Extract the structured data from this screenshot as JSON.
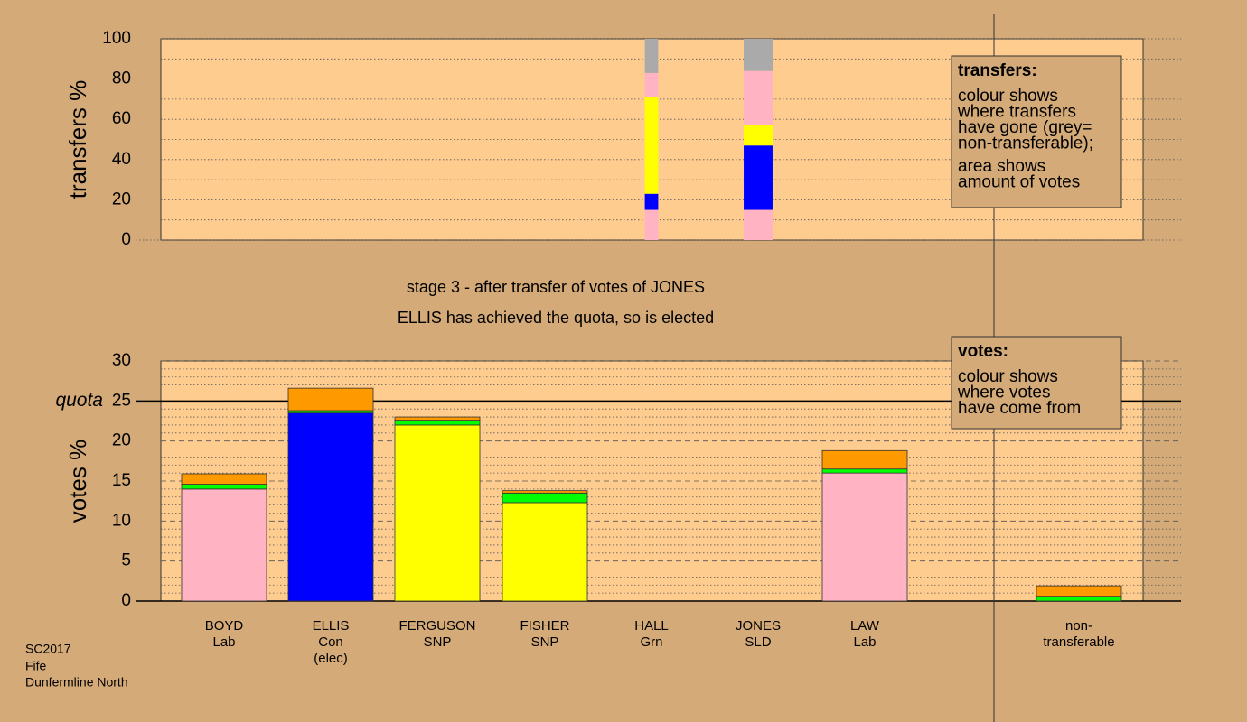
{
  "header": {
    "lines": [
      "stage 3 - after transfer of votes of JONES",
      "ELLIS has achieved the quota, so is elected"
    ]
  },
  "footer": [
    "SC2017",
    "Fife",
    "Dunfermline North"
  ],
  "chart_data": [
    {
      "type": "transfer_bar",
      "ylabel": "transfers %",
      "ylim": [
        0,
        100
      ],
      "yticks": [
        0,
        20,
        40,
        60,
        80,
        100
      ],
      "minor_yticks": [
        10,
        30,
        50,
        70,
        90
      ],
      "bar_amounts": [
        3.9,
        8.4
      ],
      "series": [
        {
          "color": "#ffb3c3",
          "values": [
            15,
            15
          ]
        },
        {
          "color": "#0000ff",
          "values": [
            8,
            32
          ]
        },
        {
          "color": "#ffff00",
          "values": [
            18,
            5
          ]
        },
        {
          "color": "#ffff00",
          "values": [
            30,
            5
          ]
        },
        {
          "color": "#ffb3c3",
          "values": [
            12,
            27
          ]
        },
        {
          "color": "#aaaaaa",
          "values": [
            17,
            16
          ]
        }
      ],
      "note": {
        "title": "transfers:",
        "lines": [
          "colour shows",
          "where transfers",
          "have gone (grey=",
          "non-transferable);",
          "area shows",
          "amount of votes"
        ]
      }
    },
    {
      "type": "stacked_bar",
      "ylabel": "votes %",
      "categories": [
        [
          "BOYD",
          "Lab"
        ],
        [
          "ELLIS",
          "Con",
          "(elec)"
        ],
        [
          "FERGUSON",
          "SNP"
        ],
        [
          "FISHER",
          "SNP"
        ],
        [
          "HALL",
          "Grn"
        ],
        [
          "JONES",
          "SLD"
        ],
        [
          "LAW",
          "Lab"
        ],
        [
          "non-",
          "transferable"
        ]
      ],
      "ylim": [
        0,
        30
      ],
      "yticks": [
        0,
        5,
        10,
        15,
        20,
        25,
        30
      ],
      "minor_yticks": [
        1,
        2,
        3,
        4,
        6,
        7,
        8,
        9,
        11,
        12,
        13,
        14,
        16,
        17,
        18,
        19,
        21,
        22,
        23,
        24,
        26,
        27,
        28,
        29
      ],
      "quota": 25,
      "quota_label": "quota",
      "series": [
        {
          "colors": [
            "#ffb3c3",
            "#0000ff",
            "#ffff00",
            "#ffff00",
            "#00ff00",
            "#ff9900",
            "#ffb3c3",
            "#aaaaaa"
          ],
          "values": [
            14.0,
            23.5,
            22.0,
            12.3,
            0,
            0,
            16.0,
            0
          ]
        },
        {
          "color": "#00ff00",
          "values": [
            0.6,
            0.3,
            0.6,
            1.2,
            0,
            0,
            0.5,
            0.6
          ]
        },
        {
          "color": "#ff9900",
          "values": [
            1.3,
            2.8,
            0.4,
            0.3,
            0,
            0,
            2.3,
            1.3
          ]
        }
      ],
      "note": {
        "title": "votes:",
        "lines": [
          "colour shows",
          "where votes",
          "have come from"
        ]
      }
    }
  ]
}
